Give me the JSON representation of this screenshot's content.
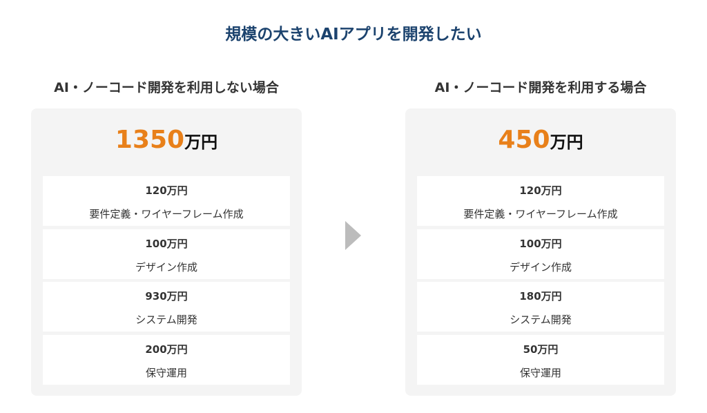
{
  "title": "規模の大きいAIアプリを開発したい",
  "colors": {
    "title": "#1c436e",
    "total": "#e8801a",
    "card_bg": "#f4f4f4",
    "arrow": "#bcbcbc"
  },
  "arrow_icon": "triangle-right",
  "left": {
    "heading": "AI・ノーコード開発を利用しない場合",
    "total_value": "1350",
    "total_unit": "万円",
    "items": [
      {
        "amount": "120万円",
        "label": "要件定義・ワイヤーフレーム作成"
      },
      {
        "amount": "100万円",
        "label": "デザイン作成"
      },
      {
        "amount": "930万円",
        "label": "システム開発"
      },
      {
        "amount": "200万円",
        "label": "保守運用"
      }
    ]
  },
  "right": {
    "heading": "AI・ノーコード開発を利用する場合",
    "total_value": "450",
    "total_unit": "万円",
    "items": [
      {
        "amount": "120万円",
        "label": "要件定義・ワイヤーフレーム作成"
      },
      {
        "amount": "100万円",
        "label": "デザイン作成"
      },
      {
        "amount": "180万円",
        "label": "システム開発"
      },
      {
        "amount": "50万円",
        "label": "保守運用"
      }
    ]
  }
}
